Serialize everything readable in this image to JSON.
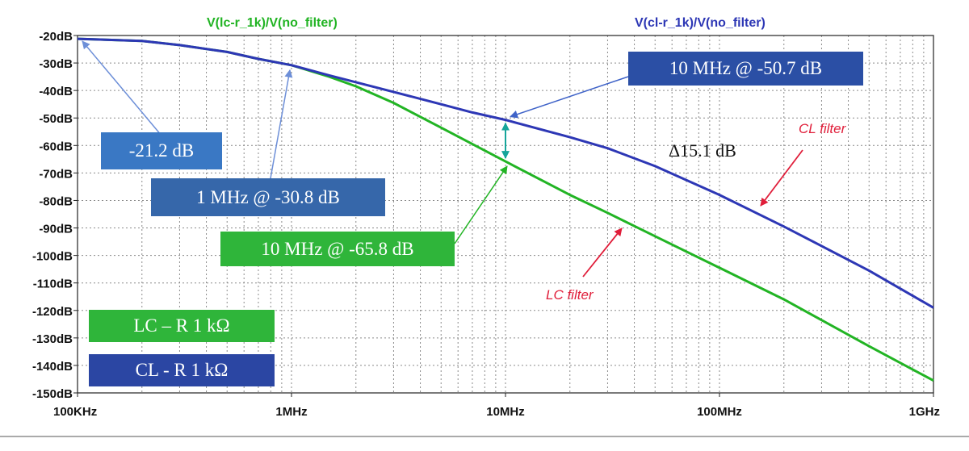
{
  "chart_data": {
    "type": "line",
    "title": "",
    "xlabel": "",
    "ylabel": "",
    "x_scale": "log",
    "xlim_hz": [
      100000,
      1000000000
    ],
    "ylim": [
      -150,
      -20
    ],
    "grid": true,
    "x_ticks": [
      {
        "value": 100000,
        "label": "100KHz"
      },
      {
        "value": 1000000,
        "label": "1MHz"
      },
      {
        "value": 10000000,
        "label": "10MHz"
      },
      {
        "value": 100000000,
        "label": "100MHz"
      },
      {
        "value": 1000000000,
        "label": "1GHz"
      }
    ],
    "y_ticks": [
      {
        "value": -20,
        "label": "-20dB"
      },
      {
        "value": -30,
        "label": "-30dB"
      },
      {
        "value": -40,
        "label": "-40dB"
      },
      {
        "value": -50,
        "label": "-50dB"
      },
      {
        "value": -60,
        "label": "-60dB"
      },
      {
        "value": -70,
        "label": "-70dB"
      },
      {
        "value": -80,
        "label": "-80dB"
      },
      {
        "value": -90,
        "label": "-90dB"
      },
      {
        "value": -100,
        "label": "-100dB"
      },
      {
        "value": -110,
        "label": "-110dB"
      },
      {
        "value": -120,
        "label": "-120dB"
      },
      {
        "value": -130,
        "label": "-130dB"
      },
      {
        "value": -140,
        "label": "-140dB"
      },
      {
        "value": -150,
        "label": "-150dB"
      }
    ],
    "series": [
      {
        "name": "V(lc-r_1k)/V(no_filter)",
        "color": "#22b424",
        "points": [
          [
            100000,
            -21.2
          ],
          [
            200000,
            -22.0
          ],
          [
            300000,
            -23.5
          ],
          [
            500000,
            -26.0
          ],
          [
            700000,
            -28.5
          ],
          [
            1000000,
            -30.8
          ],
          [
            1500000,
            -35.0
          ],
          [
            2000000,
            -38.5
          ],
          [
            3000000,
            -44.5
          ],
          [
            5000000,
            -53.5
          ],
          [
            7000000,
            -59.5
          ],
          [
            10000000,
            -65.8
          ],
          [
            20000000,
            -78.0
          ],
          [
            30000000,
            -84.5
          ],
          [
            50000000,
            -93.0
          ],
          [
            100000000,
            -104.5
          ],
          [
            200000000,
            -116.0
          ],
          [
            500000000,
            -133.0
          ],
          [
            1000000000,
            -145.5
          ]
        ]
      },
      {
        "name": "V(cl-r_1k)/V(no_filter)",
        "color": "#2d37b5",
        "points": [
          [
            100000,
            -21.2
          ],
          [
            200000,
            -22.0
          ],
          [
            300000,
            -23.5
          ],
          [
            500000,
            -26.0
          ],
          [
            700000,
            -28.5
          ],
          [
            1000000,
            -30.8
          ],
          [
            1500000,
            -34.5
          ],
          [
            2000000,
            -37.0
          ],
          [
            3000000,
            -40.5
          ],
          [
            5000000,
            -45.0
          ],
          [
            7000000,
            -48.0
          ],
          [
            10000000,
            -50.7
          ],
          [
            20000000,
            -57.0
          ],
          [
            30000000,
            -61.0
          ],
          [
            50000000,
            -67.5
          ],
          [
            100000000,
            -78.0
          ],
          [
            200000000,
            -89.5
          ],
          [
            500000000,
            -105.5
          ],
          [
            1000000000,
            -119.0
          ]
        ]
      }
    ],
    "annotations": {
      "start": "-21.2 dB",
      "at_1mhz": "1 MHz @ -30.8 dB",
      "cl_at_10mhz": "10 MHz @ -50.7 dB",
      "lc_at_10mhz": "10 MHz @ -65.8 dB",
      "delta": "Δ15.1 dB",
      "cl_filter": "CL filter",
      "lc_filter": "LC filter",
      "legend_lc": "LC – R 1 kΩ",
      "legend_cl": "CL - R 1 kΩ"
    },
    "colors": {
      "lc_curve": "#22b424",
      "cl_curve": "#2d37b5",
      "box_steel": "#3a78c4",
      "box_slate": "#3463a8",
      "box_green": "#2fb53a",
      "box_navy": "#2b46a3",
      "arrow_red": "#e01e3a",
      "arrow_teal": "#16a59a",
      "grid": "#8a8a8a"
    }
  }
}
